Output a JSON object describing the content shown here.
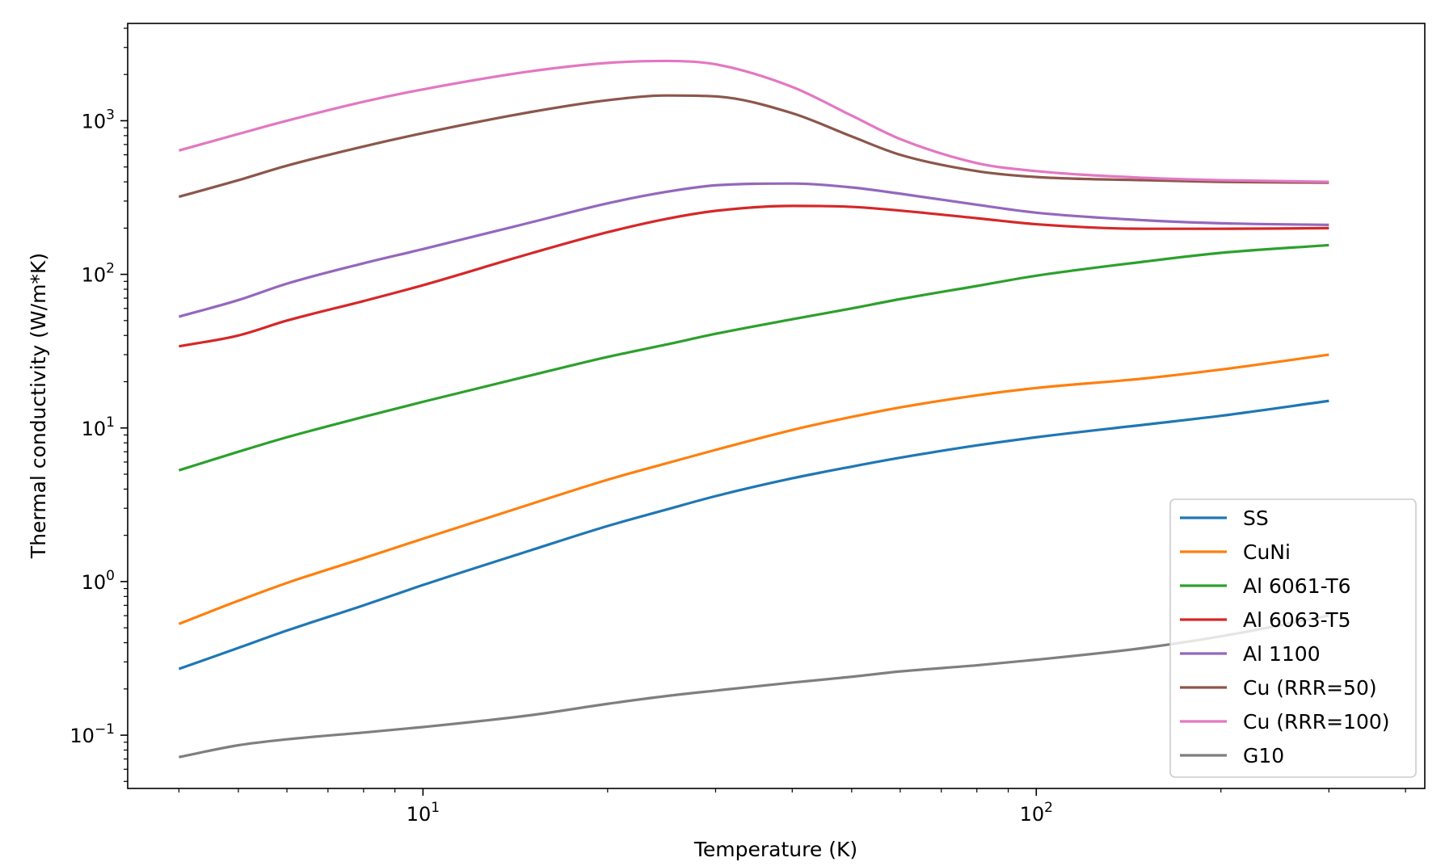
{
  "chart_data": {
    "type": "line",
    "title": "",
    "xlabel": "Temperature (K)",
    "ylabel": "Thermal conductivity (W/m*K)",
    "xscale": "log",
    "yscale": "log",
    "xlim": [
      3.3,
      430
    ],
    "ylim": [
      0.045,
      4300
    ],
    "grid": false,
    "legend_position": "lower-right",
    "x_tick_labels": [
      {
        "value": 10,
        "base": "10",
        "exp": "1"
      },
      {
        "value": 100,
        "base": "10",
        "exp": "2"
      }
    ],
    "y_tick_labels": [
      {
        "value": 0.1,
        "base": "10",
        "exp": "−1"
      },
      {
        "value": 1,
        "base": "10",
        "exp": "0"
      },
      {
        "value": 10,
        "base": "10",
        "exp": "1"
      },
      {
        "value": 100,
        "base": "10",
        "exp": "2"
      },
      {
        "value": 1000,
        "base": "10",
        "exp": "3"
      }
    ],
    "x": [
      4,
      5,
      6,
      8,
      10,
      15,
      20,
      25,
      30,
      40,
      50,
      60,
      80,
      100,
      150,
      200,
      300
    ],
    "series": [
      {
        "name": "SS",
        "color": "#1f77b4",
        "values": [
          0.27,
          0.37,
          0.48,
          0.7,
          0.95,
          1.6,
          2.3,
          2.95,
          3.6,
          4.7,
          5.6,
          6.4,
          7.7,
          8.7,
          10.5,
          12.0,
          15.0
        ]
      },
      {
        "name": "CuNi",
        "color": "#ff7f0e",
        "values": [
          0.53,
          0.75,
          0.98,
          1.42,
          1.9,
          3.2,
          4.6,
          5.9,
          7.2,
          9.7,
          11.8,
          13.6,
          16.3,
          18.2,
          21.0,
          24.0,
          30.0
        ]
      },
      {
        "name": "Al 6061-T6",
        "color": "#2ca02c",
        "values": [
          5.3,
          7.0,
          8.7,
          11.8,
          14.8,
          22,
          29,
          35,
          41,
          51,
          60,
          69,
          84,
          98,
          121,
          138,
          155
        ]
      },
      {
        "name": "Al 6063-T5",
        "color": "#d62728",
        "values": [
          34,
          40,
          50,
          67,
          85,
          137,
          188,
          230,
          259,
          279,
          275,
          260,
          232,
          212,
          198,
          198,
          200
        ]
      },
      {
        "name": "Al 1100",
        "color": "#9467bd",
        "values": [
          53,
          68,
          87,
          118,
          146,
          218,
          290,
          345,
          380,
          390,
          368,
          335,
          284,
          252,
          225,
          215,
          210
        ]
      },
      {
        "name": "Cu (RRR=50)",
        "color": "#8c564b",
        "values": [
          320,
          410,
          510,
          680,
          830,
          1140,
          1360,
          1460,
          1440,
          1120,
          790,
          600,
          470,
          430,
          410,
          400,
          395
        ]
      },
      {
        "name": "Cu (RRR=100)",
        "color": "#e377c2",
        "values": [
          640,
          820,
          1000,
          1330,
          1600,
          2100,
          2380,
          2450,
          2330,
          1660,
          1080,
          760,
          530,
          470,
          425,
          410,
          400
        ]
      },
      {
        "name": "G10",
        "color": "#7f7f7f",
        "values": [
          0.072,
          0.086,
          0.094,
          0.104,
          0.113,
          0.135,
          0.16,
          0.18,
          0.195,
          0.22,
          0.24,
          0.26,
          0.285,
          0.31,
          0.37,
          0.44,
          0.6
        ]
      }
    ]
  }
}
